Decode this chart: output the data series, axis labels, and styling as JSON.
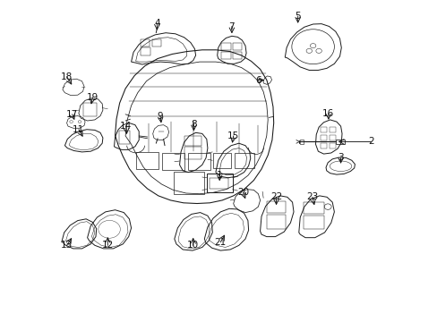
{
  "bg_color": "#ffffff",
  "line_color": "#1a1a1a",
  "label_color": "#111111",
  "lw": 0.7,
  "fig_w": 4.89,
  "fig_h": 3.6,
  "dpi": 100,
  "parts_labels": {
    "1": [
      0.535,
      0.415,
      0.535,
      0.445
    ],
    "2": [
      0.93,
      0.56,
      0.97,
      0.56
    ],
    "3": [
      0.885,
      0.465,
      0.885,
      0.5
    ],
    "4": [
      0.31,
      0.87,
      0.31,
      0.9
    ],
    "5": [
      0.748,
      0.885,
      0.748,
      0.918
    ],
    "6": [
      0.645,
      0.742,
      0.62,
      0.742
    ],
    "7": [
      0.548,
      0.868,
      0.548,
      0.9
    ],
    "8": [
      0.408,
      0.538,
      0.408,
      0.568
    ],
    "9": [
      0.318,
      0.598,
      0.312,
      0.562
    ],
    "10": [
      0.415,
      0.275,
      0.415,
      0.242
    ],
    "11": [
      0.08,
      0.555,
      0.065,
      0.528
    ],
    "12": [
      0.148,
      0.28,
      0.148,
      0.248
    ],
    "13": [
      0.038,
      0.278,
      0.025,
      0.248
    ],
    "14": [
      0.212,
      0.558,
      0.208,
      0.528
    ],
    "15": [
      0.52,
      0.538,
      0.528,
      0.505
    ],
    "16": [
      0.832,
      0.555,
      0.832,
      0.525
    ],
    "17": [
      0.068,
      0.635,
      0.055,
      0.605
    ],
    "18": [
      0.04,
      0.72,
      0.028,
      0.752
    ],
    "19": [
      0.105,
      0.672,
      0.108,
      0.64
    ],
    "20": [
      0.572,
      0.398,
      0.572,
      0.365
    ],
    "21": [
      0.522,
      0.282,
      0.502,
      0.248
    ],
    "22": [
      0.682,
      0.39,
      0.682,
      0.36
    ],
    "23": [
      0.782,
      0.382,
      0.782,
      0.35
    ]
  }
}
